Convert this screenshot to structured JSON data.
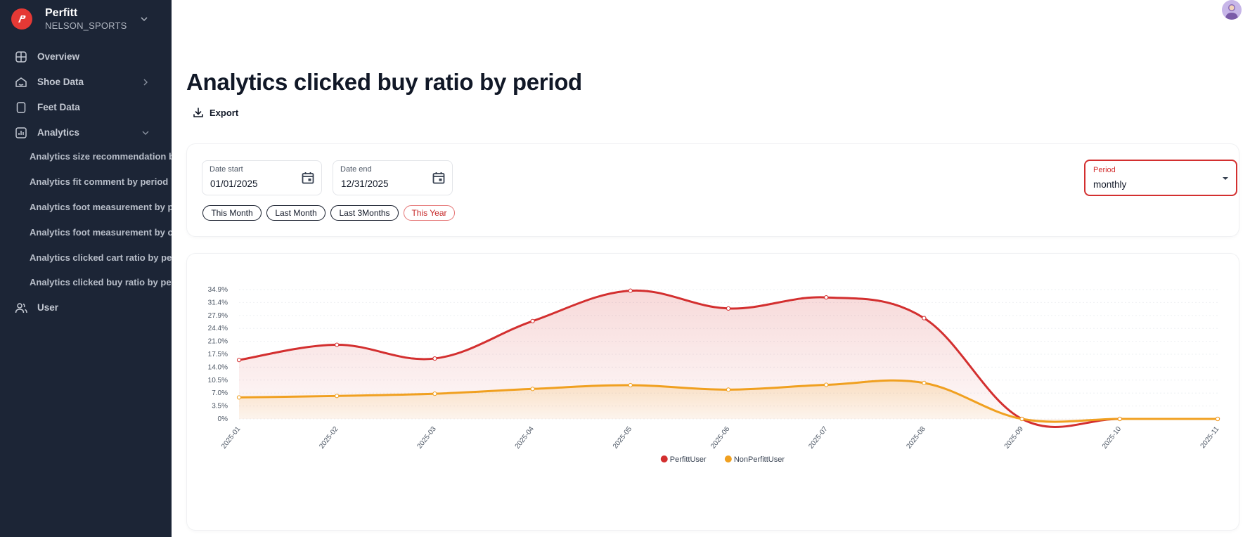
{
  "brand": {
    "name": "Perfitt",
    "org": "NELSON_SPORTS"
  },
  "sidebar": {
    "items": [
      {
        "label": "Overview",
        "icon": "grid-icon"
      },
      {
        "label": "Shoe Data",
        "icon": "shoe-icon"
      },
      {
        "label": "Feet Data",
        "icon": "tablet-icon"
      },
      {
        "label": "Analytics",
        "icon": "bar-chart-icon"
      },
      {
        "label": "User",
        "icon": "users-icon"
      }
    ],
    "analytics_sub": [
      "Analytics size recommendation by period",
      "Analytics fit comment by period",
      "Analytics foot measurement by period",
      "Analytics foot measurement by country",
      "Analytics clicked cart ratio by period",
      "Analytics clicked buy ratio by period"
    ]
  },
  "page": {
    "title": "Analytics clicked buy ratio by period",
    "export_label": "Export"
  },
  "filters": {
    "date_start": {
      "label": "Date start",
      "value": "01/01/2025"
    },
    "date_end": {
      "label": "Date end",
      "value": "12/31/2025"
    },
    "chips": [
      "This Month",
      "Last Month",
      "Last 3Months",
      "This Year"
    ],
    "active_chip": "This Year",
    "period": {
      "label": "Period",
      "value": "monthly"
    }
  },
  "colors": {
    "accent": "#d32f2f",
    "perfitt_series": "#d32f2f",
    "nonperfitt_series": "#f0a020",
    "sidebar_bg": "#1c2536"
  },
  "chart_data": {
    "type": "area",
    "categories": [
      "2025-01",
      "2025-02",
      "2025-03",
      "2025-04",
      "2025-05",
      "2025-06",
      "2025-07",
      "2025-08",
      "2025-09",
      "2025-10",
      "2025-11"
    ],
    "y_ticks": [
      "0%",
      "3.5%",
      "7.0%",
      "10.5%",
      "14.0%",
      "17.5%",
      "21.0%",
      "24.4%",
      "27.9%",
      "31.4%",
      "34.9%"
    ],
    "ylim": [
      0,
      34.9
    ],
    "grid": true,
    "legend_position": "bottom-center",
    "series": [
      {
        "name": "PerfittUser",
        "color": "#d32f2f",
        "values": [
          15.9,
          20.0,
          16.3,
          26.4,
          34.6,
          29.8,
          32.8,
          27.2,
          0,
          0,
          0
        ]
      },
      {
        "name": "NonPerfittUser",
        "color": "#f0a020",
        "values": [
          5.8,
          6.2,
          6.8,
          8.1,
          9.1,
          7.9,
          9.2,
          9.7,
          0,
          0,
          0
        ]
      }
    ]
  }
}
